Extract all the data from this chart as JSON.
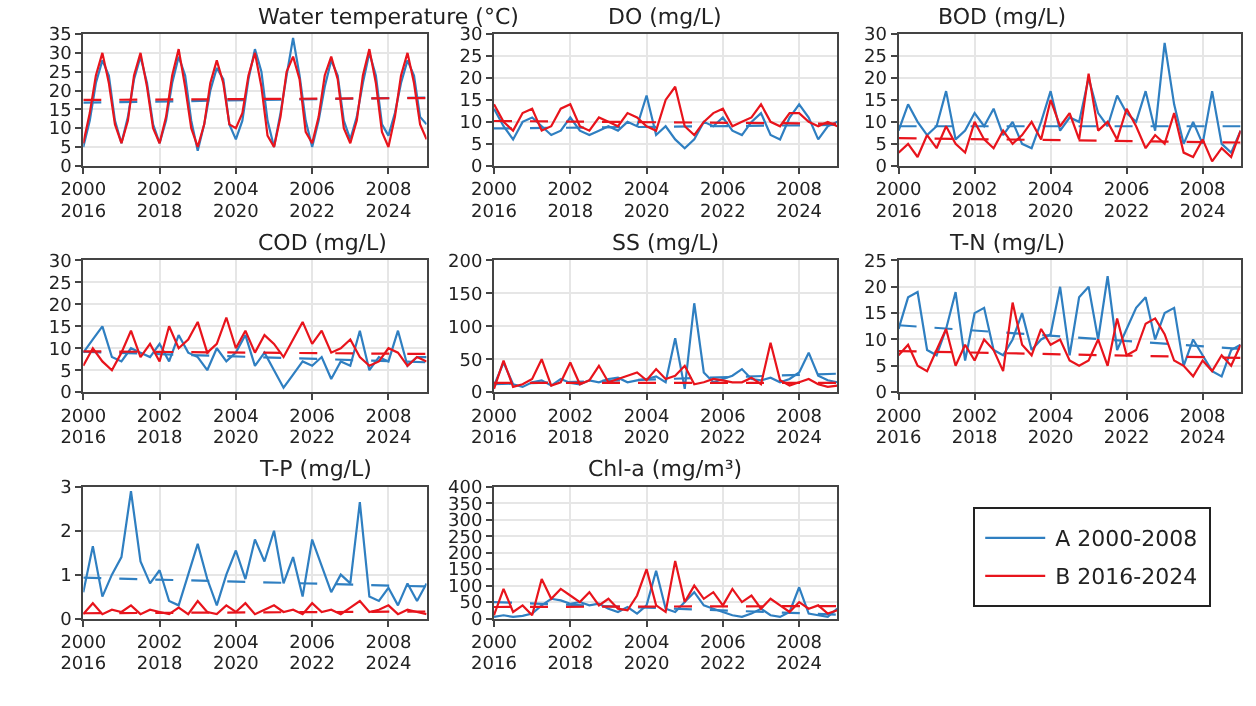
{
  "chart_data": [
    {
      "type": "line",
      "title": "Water temperature (°C)",
      "legend": "right",
      "grid": true,
      "xlim": [
        2000,
        2009
      ],
      "x2lim": [
        2016,
        2025
      ],
      "ylim": [
        0,
        35
      ],
      "yticks": [
        0,
        5,
        10,
        15,
        20,
        25,
        30,
        35
      ],
      "xticks": [
        2000,
        2002,
        2004,
        2006,
        2008
      ],
      "x2ticks": [
        2016,
        2018,
        2020,
        2022,
        2024
      ],
      "x": [
        2000,
        2000.17,
        2000.33,
        2000.5,
        2000.67,
        2000.83,
        2001,
        2001.17,
        2001.33,
        2001.5,
        2001.67,
        2001.83,
        2002,
        2002.17,
        2002.33,
        2002.5,
        2002.67,
        2002.83,
        2003,
        2003.17,
        2003.33,
        2003.5,
        2003.67,
        2003.83,
        2004,
        2004.17,
        2004.33,
        2004.5,
        2004.67,
        2004.83,
        2005,
        2005.17,
        2005.33,
        2005.5,
        2005.67,
        2005.83,
        2006,
        2006.17,
        2006.33,
        2006.5,
        2006.67,
        2006.83,
        2007,
        2007.17,
        2007.33,
        2007.5,
        2007.67,
        2007.83,
        2008,
        2008.17,
        2008.33,
        2008.5,
        2008.67,
        2008.83,
        2009
      ],
      "series": [
        {
          "name": "A 2000-2008",
          "color": "#2f7fc1",
          "values": [
            5,
            12,
            22,
            28,
            24,
            12,
            6,
            13,
            23,
            29,
            22,
            11,
            6,
            12,
            22,
            29,
            24,
            12,
            4,
            11,
            20,
            26,
            23,
            11,
            7,
            12,
            23,
            31,
            25,
            12,
            5,
            14,
            24,
            34,
            24,
            12,
            5,
            12,
            21,
            28,
            24,
            12,
            7,
            13,
            22,
            30,
            24,
            11,
            8,
            14,
            22,
            28,
            24,
            13,
            11
          ]
        },
        {
          "name": "B 2016-2024",
          "color": "#e8141c",
          "axis": "x2",
          "x": [
            2016,
            2016.17,
            2016.33,
            2016.5,
            2016.67,
            2016.83,
            2017,
            2017.17,
            2017.33,
            2017.5,
            2017.67,
            2017.83,
            2018,
            2018.17,
            2018.33,
            2018.5,
            2018.67,
            2018.83,
            2019,
            2019.17,
            2019.33,
            2019.5,
            2019.67,
            2019.83,
            2020,
            2020.17,
            2020.33,
            2020.5,
            2020.67,
            2020.83,
            2021,
            2021.17,
            2021.33,
            2021.5,
            2021.67,
            2021.83,
            2022,
            2022.17,
            2022.33,
            2022.5,
            2022.67,
            2022.83,
            2023,
            2023.17,
            2023.33,
            2023.5,
            2023.67,
            2023.83,
            2024,
            2024.17,
            2024.33,
            2024.5,
            2024.67,
            2024.83,
            2025
          ],
          "values": [
            6,
            14,
            24,
            30,
            22,
            11,
            6,
            12,
            24,
            30,
            21,
            10,
            6,
            13,
            24,
            31,
            21,
            10,
            5,
            11,
            22,
            28,
            22,
            11,
            10,
            14,
            24,
            30,
            21,
            8,
            5,
            13,
            25,
            29,
            23,
            9,
            6,
            13,
            24,
            29,
            23,
            10,
            6,
            12,
            24,
            31,
            22,
            9,
            5,
            13,
            24,
            30,
            22,
            11,
            7
          ]
        },
        {
          "type": "line",
          "line_style": "dashed",
          "color": "#2f7fc1",
          "x": [
            2000,
            2009
          ],
          "values": [
            16.8,
            18.1
          ]
        },
        {
          "type": "line",
          "line_style": "dashed",
          "color": "#e8141c",
          "axis": "x2",
          "x": [
            2016,
            2025
          ],
          "values": [
            17.5,
            18.0
          ]
        }
      ]
    },
    {
      "type": "line",
      "title": "DO (mg/L)",
      "grid": true,
      "xlim": [
        2000,
        2009
      ],
      "x2lim": [
        2016,
        2025
      ],
      "ylim": [
        0,
        30
      ],
      "yticks": [
        0,
        5,
        10,
        15,
        20,
        25,
        30
      ],
      "xticks": [
        2000,
        2002,
        2004,
        2006,
        2008
      ],
      "x2ticks": [
        2016,
        2018,
        2020,
        2022,
        2024
      ],
      "x": [
        2000,
        2000.25,
        2000.5,
        2000.75,
        2001,
        2001.25,
        2001.5,
        2001.75,
        2002,
        2002.25,
        2002.5,
        2002.75,
        2003,
        2003.25,
        2003.5,
        2003.75,
        2004,
        2004.25,
        2004.5,
        2004.75,
        2005,
        2005.25,
        2005.5,
        2005.75,
        2006,
        2006.25,
        2006.5,
        2006.75,
        2007,
        2007.25,
        2007.5,
        2007.75,
        2008,
        2008.25,
        2008.5,
        2008.75,
        2009
      ],
      "series": [
        {
          "name": "A 2000-2008",
          "color": "#2f7fc1",
          "values": [
            13,
            9,
            6,
            10,
            11,
            9,
            7,
            8,
            11,
            8,
            7,
            8,
            9,
            8,
            10,
            9,
            16,
            7,
            9,
            6,
            4,
            6,
            10,
            9,
            11,
            8,
            7,
            10,
            12,
            7,
            6,
            11,
            14,
            11,
            6,
            9,
            10
          ]
        },
        {
          "name": "B 2016-2024",
          "color": "#e8141c",
          "axis": "x2",
          "x": [
            2016,
            2016.25,
            2016.5,
            2016.75,
            2017,
            2017.25,
            2017.5,
            2017.75,
            2018,
            2018.25,
            2018.5,
            2018.75,
            2019,
            2019.25,
            2019.5,
            2019.75,
            2020,
            2020.25,
            2020.5,
            2020.75,
            2021,
            2021.25,
            2021.5,
            2021.75,
            2022,
            2022.25,
            2022.5,
            2022.75,
            2023,
            2023.25,
            2023.5,
            2023.75,
            2024,
            2024.25,
            2024.5,
            2024.75,
            2025
          ],
          "values": [
            14,
            10,
            8,
            12,
            13,
            8,
            9,
            13,
            14,
            9,
            8,
            11,
            10,
            9,
            12,
            11,
            9,
            8,
            15,
            18,
            9,
            7,
            10,
            12,
            13,
            9,
            10,
            11,
            14,
            10,
            9,
            12,
            12,
            10,
            9,
            10,
            9
          ]
        },
        {
          "type": "line",
          "line_style": "dashed",
          "color": "#2f7fc1",
          "x": [
            2000,
            2009
          ],
          "values": [
            8.5,
            9.3
          ]
        },
        {
          "type": "line",
          "line_style": "dashed",
          "color": "#e8141c",
          "axis": "x2",
          "x": [
            2016,
            2025
          ],
          "values": [
            10.2,
            9.6
          ]
        }
      ]
    },
    {
      "type": "line",
      "title": "BOD (mg/L)",
      "grid": true,
      "xlim": [
        2000,
        2009
      ],
      "x2lim": [
        2016,
        2025
      ],
      "ylim": [
        0,
        30
      ],
      "yticks": [
        0,
        5,
        10,
        15,
        20,
        25,
        30
      ],
      "xticks": [
        2000,
        2002,
        2004,
        2006,
        2008
      ],
      "x2ticks": [
        2016,
        2018,
        2020,
        2022,
        2024
      ],
      "x": [
        2000,
        2000.25,
        2000.5,
        2000.75,
        2001,
        2001.25,
        2001.5,
        2001.75,
        2002,
        2002.25,
        2002.5,
        2002.75,
        2003,
        2003.25,
        2003.5,
        2003.75,
        2004,
        2004.25,
        2004.5,
        2004.75,
        2005,
        2005.25,
        2005.5,
        2005.75,
        2006,
        2006.25,
        2006.5,
        2006.75,
        2007,
        2007.25,
        2007.5,
        2007.75,
        2008,
        2008.25,
        2008.5,
        2008.75,
        2009
      ],
      "series": [
        {
          "name": "A 2000-2008",
          "color": "#2f7fc1",
          "values": [
            8,
            14,
            10,
            7,
            9,
            17,
            6,
            8,
            12,
            9,
            13,
            7,
            10,
            5,
            4,
            10,
            17,
            8,
            11,
            10,
            20,
            12,
            9,
            16,
            12,
            10,
            17,
            8,
            28,
            14,
            5,
            10,
            5,
            17,
            5,
            3,
            8
          ]
        },
        {
          "name": "B 2016-2024",
          "color": "#e8141c",
          "axis": "x2",
          "x": [
            2016,
            2016.25,
            2016.5,
            2016.75,
            2017,
            2017.25,
            2017.5,
            2017.75,
            2018,
            2018.25,
            2018.5,
            2018.75,
            2019,
            2019.25,
            2019.5,
            2019.75,
            2020,
            2020.25,
            2020.5,
            2020.75,
            2021,
            2021.25,
            2021.5,
            2021.75,
            2022,
            2022.25,
            2022.5,
            2022.75,
            2023,
            2023.25,
            2023.5,
            2023.75,
            2024,
            2024.25,
            2024.5,
            2024.75,
            2025
          ],
          "values": [
            3,
            5,
            2,
            7,
            4,
            9,
            5,
            3,
            10,
            6,
            4,
            8,
            5,
            7,
            10,
            6,
            15,
            9,
            12,
            6,
            21,
            8,
            10,
            6,
            13,
            9,
            4,
            7,
            5,
            12,
            3,
            2,
            6,
            1,
            4,
            2,
            8
          ]
        },
        {
          "type": "line",
          "line_style": "dashed",
          "color": "#2f7fc1",
          "x": [
            2000,
            2009
          ],
          "values": [
            9,
            9
          ]
        },
        {
          "type": "line",
          "line_style": "dashed",
          "color": "#e8141c",
          "axis": "x2",
          "x": [
            2016,
            2025
          ],
          "values": [
            6.3,
            5.3
          ]
        }
      ]
    },
    {
      "type": "line",
      "title": "COD (mg/L)",
      "grid": true,
      "xlim": [
        2000,
        2009
      ],
      "x2lim": [
        2016,
        2025
      ],
      "ylim": [
        0,
        30
      ],
      "yticks": [
        0,
        5,
        10,
        15,
        20,
        25,
        30
      ],
      "xticks": [
        2000,
        2002,
        2004,
        2006,
        2008
      ],
      "x2ticks": [
        2016,
        2018,
        2020,
        2022,
        2024
      ],
      "x": [
        2000,
        2000.25,
        2000.5,
        2000.75,
        2001,
        2001.25,
        2001.5,
        2001.75,
        2002,
        2002.25,
        2002.5,
        2002.75,
        2003,
        2003.25,
        2003.5,
        2003.75,
        2004,
        2004.25,
        2004.5,
        2004.75,
        2005,
        2005.25,
        2005.5,
        2005.75,
        2006,
        2006.25,
        2006.5,
        2006.75,
        2007,
        2007.25,
        2007.5,
        2007.75,
        2008,
        2008.25,
        2008.5,
        2008.75,
        2009
      ],
      "series": [
        {
          "name": "A 2000-2008",
          "color": "#2f7fc1",
          "values": [
            9,
            12,
            15,
            8,
            7,
            10,
            9,
            8,
            11,
            7,
            13,
            9,
            8,
            5,
            10,
            7,
            9,
            13,
            6,
            9,
            5,
            1,
            4,
            7,
            6,
            8,
            3,
            7,
            6,
            14,
            5,
            8,
            7,
            14,
            6,
            8,
            8
          ]
        },
        {
          "name": "B 2016-2024",
          "color": "#e8141c",
          "axis": "x2",
          "x": [
            2016,
            2016.25,
            2016.5,
            2016.75,
            2017,
            2017.25,
            2017.5,
            2017.75,
            2018,
            2018.25,
            2018.5,
            2018.75,
            2019,
            2019.25,
            2019.5,
            2019.75,
            2020,
            2020.25,
            2020.5,
            2020.75,
            2021,
            2021.25,
            2021.5,
            2021.75,
            2022,
            2022.25,
            2022.5,
            2022.75,
            2023,
            2023.25,
            2023.5,
            2023.75,
            2024,
            2024.25,
            2024.5,
            2024.75,
            2025
          ],
          "values": [
            6,
            10,
            7,
            5,
            9,
            14,
            8,
            11,
            7,
            15,
            10,
            12,
            16,
            9,
            11,
            17,
            10,
            14,
            9,
            13,
            11,
            8,
            12,
            16,
            11,
            14,
            9,
            10,
            12,
            8,
            6,
            7,
            10,
            9,
            6,
            8,
            7
          ]
        },
        {
          "type": "line",
          "line_style": "dashed",
          "color": "#2f7fc1",
          "x": [
            2000,
            2009
          ],
          "values": [
            9.2,
            6.8
          ]
        },
        {
          "type": "line",
          "line_style": "dashed",
          "color": "#e8141c",
          "axis": "x2",
          "x": [
            2016,
            2025
          ],
          "values": [
            9.3,
            8.7
          ]
        }
      ]
    },
    {
      "type": "line",
      "title": "SS (mg/L)",
      "grid": true,
      "xlim": [
        2000,
        2009
      ],
      "x2lim": [
        2016,
        2025
      ],
      "ylim": [
        0,
        200
      ],
      "yticks": [
        0,
        50,
        100,
        150,
        200
      ],
      "xticks": [
        2000,
        2002,
        2004,
        2006,
        2008
      ],
      "x2ticks": [
        2016,
        2018,
        2020,
        2022,
        2024
      ],
      "x": [
        2000,
        2000.25,
        2000.5,
        2000.75,
        2001,
        2001.25,
        2001.5,
        2001.75,
        2002,
        2002.25,
        2002.5,
        2002.75,
        2003,
        2003.25,
        2003.5,
        2003.75,
        2004,
        2004.25,
        2004.5,
        2004.75,
        2005,
        2005.25,
        2005.5,
        2005.75,
        2006,
        2006.25,
        2006.5,
        2006.75,
        2007,
        2007.25,
        2007.5,
        2007.75,
        2008,
        2008.25,
        2008.5,
        2008.75,
        2009
      ],
      "series": [
        {
          "name": "A 2000-2008",
          "color": "#2f7fc1",
          "values": [
            10,
            45,
            12,
            8,
            15,
            18,
            10,
            20,
            14,
            12,
            18,
            15,
            20,
            22,
            15,
            18,
            20,
            24,
            15,
            82,
            5,
            135,
            30,
            15,
            20,
            25,
            35,
            20,
            18,
            22,
            15,
            20,
            30,
            60,
            25,
            18,
            15
          ]
        },
        {
          "name": "B 2016-2024",
          "color": "#e8141c",
          "axis": "x2",
          "x": [
            2016,
            2016.25,
            2016.5,
            2016.75,
            2017,
            2017.25,
            2017.5,
            2017.75,
            2018,
            2018.25,
            2018.5,
            2018.75,
            2019,
            2019.25,
            2019.5,
            2019.75,
            2020,
            2020.25,
            2020.5,
            2020.75,
            2021,
            2021.25,
            2021.5,
            2021.75,
            2022,
            2022.25,
            2022.5,
            2022.75,
            2023,
            2023.25,
            2023.5,
            2023.75,
            2024,
            2024.25,
            2024.5,
            2024.75,
            2025
          ],
          "values": [
            5,
            48,
            8,
            12,
            20,
            50,
            10,
            15,
            45,
            12,
            18,
            40,
            15,
            20,
            25,
            30,
            18,
            35,
            20,
            25,
            40,
            12,
            15,
            20,
            18,
            15,
            15,
            22,
            12,
            75,
            18,
            10,
            15,
            20,
            12,
            8,
            10
          ]
        },
        {
          "type": "line",
          "line_style": "dashed",
          "color": "#2f7fc1",
          "x": [
            2000,
            2009
          ],
          "values": [
            12,
            28
          ]
        },
        {
          "type": "line",
          "line_style": "dashed",
          "color": "#e8141c",
          "axis": "x2",
          "x": [
            2016,
            2025
          ],
          "values": [
            14,
            14
          ]
        }
      ]
    },
    {
      "type": "line",
      "title": "T-N (mg/L)",
      "grid": true,
      "xlim": [
        2000,
        2009
      ],
      "x2lim": [
        2016,
        2025
      ],
      "ylim": [
        0,
        25
      ],
      "yticks": [
        0,
        5,
        10,
        15,
        20,
        25
      ],
      "xticks": [
        2000,
        2002,
        2004,
        2006,
        2008
      ],
      "x2ticks": [
        2016,
        2018,
        2020,
        2022,
        2024
      ],
      "x": [
        2000,
        2000.25,
        2000.5,
        2000.75,
        2001,
        2001.25,
        2001.5,
        2001.75,
        2002,
        2002.25,
        2002.5,
        2002.75,
        2003,
        2003.25,
        2003.5,
        2003.75,
        2004,
        2004.25,
        2004.5,
        2004.75,
        2005,
        2005.25,
        2005.5,
        2005.75,
        2006,
        2006.25,
        2006.5,
        2006.75,
        2007,
        2007.25,
        2007.5,
        2007.75,
        2008,
        2008.25,
        2008.5,
        2008.75,
        2009
      ],
      "series": [
        {
          "name": "A 2000-2008",
          "color": "#2f7fc1",
          "values": [
            12,
            18,
            19,
            8,
            7,
            12,
            19,
            6,
            15,
            16,
            8,
            7,
            10,
            15,
            8,
            10,
            11,
            20,
            7,
            18,
            20,
            10,
            22,
            8,
            12,
            16,
            18,
            10,
            15,
            16,
            5,
            10,
            7,
            4,
            3,
            8,
            9
          ]
        },
        {
          "name": "B 2016-2024",
          "color": "#e8141c",
          "axis": "x2",
          "x": [
            2016,
            2016.25,
            2016.5,
            2016.75,
            2017,
            2017.25,
            2017.5,
            2017.75,
            2018,
            2018.25,
            2018.5,
            2018.75,
            2019,
            2019.25,
            2019.5,
            2019.75,
            2020,
            2020.25,
            2020.5,
            2020.75,
            2021,
            2021.25,
            2021.5,
            2021.75,
            2022,
            2022.25,
            2022.5,
            2022.75,
            2023,
            2023.25,
            2023.5,
            2023.75,
            2024,
            2024.25,
            2024.5,
            2024.75,
            2025
          ],
          "values": [
            7,
            9,
            5,
            4,
            8,
            12,
            5,
            9,
            6,
            10,
            8,
            4,
            17,
            9,
            7,
            12,
            9,
            10,
            6,
            5,
            6,
            10,
            5,
            14,
            7,
            8,
            13,
            14,
            11,
            6,
            5,
            3,
            6,
            4,
            7,
            5,
            9
          ]
        },
        {
          "type": "line",
          "line_style": "dashed",
          "color": "#2f7fc1",
          "x": [
            2000,
            2009
          ],
          "values": [
            12.7,
            8.2
          ]
        },
        {
          "type": "line",
          "line_style": "dashed",
          "color": "#e8141c",
          "axis": "x2",
          "x": [
            2016,
            2025
          ],
          "values": [
            7.8,
            6.5
          ]
        }
      ]
    },
    {
      "type": "line",
      "title": "T-P (mg/L)",
      "grid": true,
      "xlim": [
        2000,
        2009
      ],
      "x2lim": [
        2016,
        2025
      ],
      "ylim": [
        0,
        3
      ],
      "yticks": [
        0,
        1,
        2,
        3
      ],
      "xticks": [
        2000,
        2002,
        2004,
        2006,
        2008
      ],
      "x2ticks": [
        2016,
        2018,
        2020,
        2022,
        2024
      ],
      "x": [
        2000,
        2000.25,
        2000.5,
        2000.75,
        2001,
        2001.25,
        2001.5,
        2001.75,
        2002,
        2002.25,
        2002.5,
        2002.75,
        2003,
        2003.25,
        2003.5,
        2003.75,
        2004,
        2004.25,
        2004.5,
        2004.75,
        2005,
        2005.25,
        2005.5,
        2005.75,
        2006,
        2006.25,
        2006.5,
        2006.75,
        2007,
        2007.25,
        2007.5,
        2007.75,
        2008,
        2008.25,
        2008.5,
        2008.75,
        2009
      ],
      "series": [
        {
          "name": "A 2000-2008",
          "color": "#2f7fc1",
          "values": [
            0.6,
            1.65,
            0.5,
            1.0,
            1.4,
            2.9,
            1.3,
            0.8,
            1.1,
            0.4,
            0.3,
            1.0,
            1.7,
            0.9,
            0.3,
            1.0,
            1.55,
            0.9,
            1.8,
            1.3,
            2.0,
            0.8,
            1.4,
            0.5,
            1.8,
            1.2,
            0.6,
            1.0,
            0.8,
            2.65,
            0.5,
            0.4,
            0.7,
            0.3,
            0.8,
            0.4,
            0.8
          ]
        },
        {
          "name": "B 2016-2024",
          "color": "#e8141c",
          "axis": "x2",
          "x": [
            2016,
            2016.25,
            2016.5,
            2016.75,
            2017,
            2017.25,
            2017.5,
            2017.75,
            2018,
            2018.25,
            2018.5,
            2018.75,
            2019,
            2019.25,
            2019.5,
            2019.75,
            2020,
            2020.25,
            2020.5,
            2020.75,
            2021,
            2021.25,
            2021.5,
            2021.75,
            2022,
            2022.25,
            2022.5,
            2022.75,
            2023,
            2023.25,
            2023.5,
            2023.75,
            2024,
            2024.25,
            2024.5,
            2024.75,
            2025
          ],
          "values": [
            0.1,
            0.35,
            0.1,
            0.2,
            0.15,
            0.3,
            0.1,
            0.2,
            0.15,
            0.1,
            0.25,
            0.1,
            0.4,
            0.15,
            0.1,
            0.3,
            0.15,
            0.35,
            0.1,
            0.2,
            0.3,
            0.15,
            0.2,
            0.1,
            0.35,
            0.15,
            0.2,
            0.1,
            0.25,
            0.4,
            0.15,
            0.2,
            0.3,
            0.1,
            0.2,
            0.15,
            0.1
          ]
        },
        {
          "type": "line",
          "line_style": "dashed",
          "color": "#2f7fc1",
          "x": [
            2000,
            2009
          ],
          "values": [
            0.93,
            0.73
          ]
        },
        {
          "type": "line",
          "line_style": "dashed",
          "color": "#e8141c",
          "axis": "x2",
          "x": [
            2016,
            2025
          ],
          "values": [
            0.12,
            0.16
          ]
        }
      ]
    },
    {
      "type": "line",
      "title": "Chl-a (mg/m³)",
      "grid": true,
      "xlim": [
        2000,
        2009
      ],
      "x2lim": [
        2016,
        2025
      ],
      "ylim": [
        0,
        400
      ],
      "yticks": [
        0,
        50,
        100,
        150,
        200,
        250,
        300,
        350,
        400
      ],
      "xticks": [
        2000,
        2002,
        2004,
        2006,
        2008
      ],
      "x2ticks": [
        2016,
        2018,
        2020,
        2022,
        2024
      ],
      "x": [
        2000,
        2000.25,
        2000.5,
        2000.75,
        2001,
        2001.25,
        2001.5,
        2001.75,
        2002,
        2002.25,
        2002.5,
        2002.75,
        2003,
        2003.25,
        2003.5,
        2003.75,
        2004,
        2004.25,
        2004.5,
        2004.75,
        2005,
        2005.25,
        2005.5,
        2005.75,
        2006,
        2006.25,
        2006.5,
        2006.75,
        2007,
        2007.25,
        2007.5,
        2007.75,
        2008,
        2008.25,
        2008.5,
        2008.75,
        2009
      ],
      "series": [
        {
          "name": "A 2000-2008",
          "color": "#2f7fc1",
          "values": [
            5,
            10,
            5,
            8,
            15,
            40,
            60,
            55,
            45,
            50,
            40,
            45,
            30,
            20,
            35,
            15,
            40,
            145,
            30,
            20,
            50,
            80,
            40,
            30,
            20,
            10,
            5,
            15,
            30,
            10,
            5,
            20,
            95,
            15,
            10,
            5,
            30
          ]
        },
        {
          "name": "B 2016-2024",
          "color": "#e8141c",
          "axis": "x2",
          "x": [
            2016,
            2016.25,
            2016.5,
            2016.75,
            2017,
            2017.25,
            2017.5,
            2017.75,
            2018,
            2018.25,
            2018.5,
            2018.75,
            2019,
            2019.25,
            2019.5,
            2019.75,
            2020,
            2020.25,
            2020.5,
            2020.75,
            2021,
            2021.25,
            2021.5,
            2021.75,
            2022,
            2022.25,
            2022.5,
            2022.75,
            2023,
            2023.25,
            2023.5,
            2023.75,
            2024,
            2024.25,
            2024.5,
            2024.75,
            2025
          ],
          "values": [
            10,
            90,
            20,
            40,
            10,
            120,
            60,
            90,
            70,
            50,
            80,
            40,
            60,
            30,
            25,
            70,
            150,
            40,
            20,
            175,
            50,
            100,
            60,
            80,
            40,
            90,
            50,
            70,
            30,
            60,
            40,
            20,
            50,
            30,
            40,
            15,
            25
          ]
        },
        {
          "type": "line",
          "line_style": "dashed",
          "color": "#2f7fc1",
          "x": [
            2000,
            2009
          ],
          "values": [
            50,
            12
          ]
        },
        {
          "type": "line",
          "line_style": "dashed",
          "color": "#e8141c",
          "axis": "x2",
          "x": [
            2016,
            2025
          ],
          "values": [
            35,
            38
          ]
        }
      ]
    }
  ]
}
